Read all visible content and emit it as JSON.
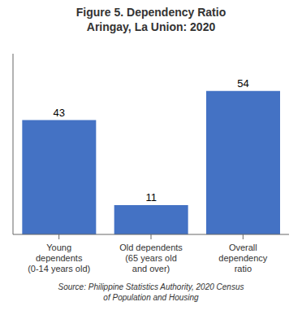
{
  "chart_data": {
    "type": "bar",
    "title": "Figure 5. Dependency Ratio\nAringay, La Union: 2020",
    "categories": [
      "Young\ndependents\n(0-14 years old)",
      "Old dependents\n(65 years old\nand over)",
      "Overall\ndependency\nratio"
    ],
    "values": [
      43,
      11,
      54
    ],
    "color": "#4472C4",
    "ylim": [
      0,
      68
    ],
    "grid": false,
    "data_labels": true,
    "tick_labels": "x",
    "annotations": [
      "Source: Philippine Statistics Authority, 2020 Census\nof Population and Housing"
    ]
  }
}
